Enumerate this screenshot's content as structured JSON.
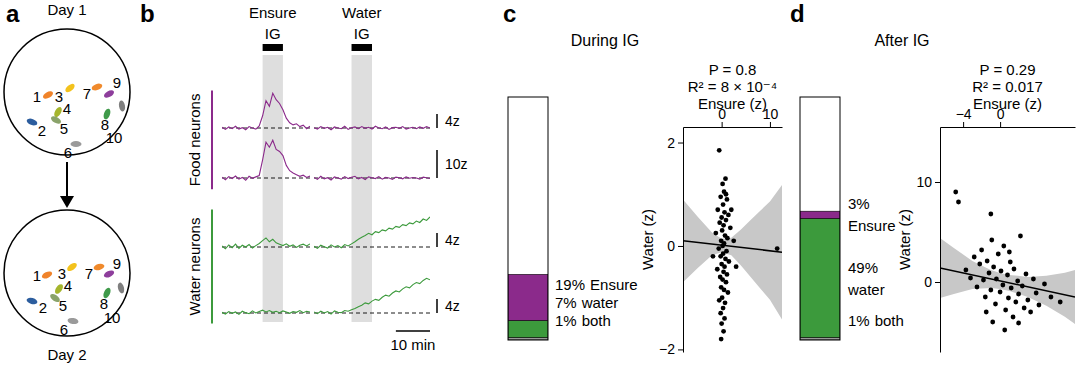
{
  "panel_labels": [
    "a",
    "b",
    "c",
    "d"
  ],
  "neuron_map": {
    "days": [
      "Day 1",
      "Day 2"
    ],
    "neurons": [
      {
        "label": "1",
        "color": "#f0832a"
      },
      {
        "label": "2",
        "color": "#2c5d9e"
      },
      {
        "label": "3",
        "color": "#f3c21c"
      },
      {
        "label": "4",
        "color": "#a5b52c"
      },
      {
        "label": "5",
        "color": "#8aa36a"
      },
      {
        "label": "6",
        "color": "#9a9a9a"
      },
      {
        "label": "7",
        "color": "#f08a2c"
      },
      {
        "label": "8",
        "color": "#3f9a4a"
      },
      {
        "label": "9",
        "color": "#8e3e9c"
      },
      {
        "label": "10",
        "color": "#7f7f7f"
      }
    ]
  },
  "traces": {
    "sessions": [
      {
        "name": "Ensure IG",
        "xlim": [
          0,
          26
        ],
        "ig_window": [
          12,
          18
        ],
        "x": [
          0,
          1,
          2,
          3,
          4,
          5,
          6,
          7,
          8,
          9,
          10,
          11,
          12,
          13,
          14,
          15,
          16,
          17,
          18,
          19,
          20,
          21,
          22,
          23,
          24,
          25,
          26
        ]
      },
      {
        "name": "Water IG",
        "xlim": [
          0,
          34
        ],
        "ig_window": [
          11,
          17
        ],
        "x": [
          0,
          1,
          2,
          3,
          4,
          5,
          6,
          7,
          8,
          9,
          10,
          11,
          12,
          13,
          14,
          15,
          16,
          17,
          18,
          19,
          20,
          21,
          22,
          23,
          24,
          25,
          26,
          27,
          28,
          29,
          30,
          31,
          32,
          33,
          34
        ]
      }
    ],
    "baseline": 0,
    "time_bar": {
      "value": 10,
      "label": "10 min"
    },
    "groups": [
      {
        "name": "Food neurons",
        "color": "#8b2a8b",
        "traces": [
          {
            "ylim": [
              -3,
              13
            ],
            "scale_bar": {
              "value": 4,
              "label": "4z"
            },
            "values": [
              [
                0.2,
                -0.4,
                0.3,
                -0.2,
                0.5,
                -0.3,
                0.1,
                -0.5,
                0.4,
                0.0,
                -0.3,
                0.6,
                3.5,
                7.8,
                6.2,
                9.9,
                8.1,
                7.0,
                5.2,
                2.8,
                1.5,
                0.9,
                1.2,
                0.4,
                0.8,
                -0.2,
                0.5
              ],
              [
                0.1,
                -0.3,
                0.4,
                -0.1,
                0.2,
                -0.5,
                0.3,
                0.0,
                -0.2,
                0.5,
                -0.4,
                0.1,
                0.3,
                -0.2,
                0.4,
                -0.1,
                0.2,
                -0.3,
                0.5,
                0.0,
                -0.2,
                0.3,
                -0.4,
                0.1,
                0.2,
                -0.1,
                0.4,
                -0.3,
                0.0,
                0.2,
                -0.2,
                0.3,
                -0.1,
                0.4,
                0.0
              ]
            ]
          },
          {
            "ylim": [
              -4,
              16
            ],
            "scale_bar": {
              "value": 10,
              "label": "10z"
            },
            "values": [
              [
                0.3,
                -0.6,
                0.5,
                -0.2,
                0.7,
                -0.4,
                0.2,
                -0.8,
                0.6,
                -0.1,
                0.4,
                0.9,
                6.5,
                12.8,
                11.0,
                13.5,
                10.2,
                9.5,
                8.0,
                4.5,
                2.6,
                1.8,
                1.2,
                0.6,
                1.0,
                0.2,
                0.7
              ],
              [
                0.2,
                -0.5,
                0.6,
                -0.3,
                0.1,
                -0.7,
                0.4,
                0.0,
                -0.4,
                0.5,
                -0.2,
                0.3,
                0.6,
                -0.3,
                0.2,
                -0.6,
                0.4,
                0.1,
                -0.2,
                0.5,
                -0.4,
                0.2,
                0.0,
                -0.5,
                0.3,
                0.1,
                -0.3,
                0.4,
                -0.1,
                0.2,
                0.0,
                -0.4,
                0.3,
                0.1,
                -0.2
              ]
            ]
          }
        ]
      },
      {
        "name": "Water neurons",
        "color": "#3c9a3c",
        "traces": [
          {
            "ylim": [
              -3,
              13
            ],
            "scale_bar": {
              "value": 4,
              "label": "4z"
            },
            "values": [
              [
                0.3,
                -0.5,
                0.6,
                -0.2,
                0.8,
                -0.4,
                0.5,
                0.0,
                0.7,
                -0.3,
                0.4,
                1.0,
                1.8,
                2.6,
                1.5,
                2.2,
                1.2,
                0.8,
                0.4,
                0.9,
                0.2,
                0.6,
                -0.1,
                0.5,
                0.8,
                0.3,
                0.9
              ],
              [
                0.2,
                -0.4,
                0.5,
                0.1,
                -0.3,
                0.6,
                0.0,
                0.4,
                -0.2,
                0.7,
                0.3,
                0.9,
                1.5,
                2.2,
                2.8,
                3.3,
                3.9,
                3.5,
                4.4,
                4.1,
                4.9,
                4.6,
                5.4,
                5.1,
                5.9,
                5.6,
                6.4,
                6.1,
                6.9,
                6.6,
                7.4,
                7.0,
                8.0,
                7.6,
                8.6
              ]
            ]
          },
          {
            "ylim": [
              -3,
              13
            ],
            "scale_bar": {
              "value": 4,
              "label": "4z"
            },
            "values": [
              [
                0.2,
                -0.3,
                0.4,
                -0.1,
                0.3,
                -0.4,
                0.5,
                0.1,
                -0.2,
                0.6,
                0.0,
                0.4,
                0.8,
                0.3,
                0.7,
                0.2,
                0.5,
                0.1,
                0.6,
                0.3,
                -0.1,
                0.4,
                0.2,
                0.7,
                0.1,
                0.5,
                0.3
              ],
              [
                0.3,
                -0.2,
                0.5,
                0.0,
                0.4,
                -0.3,
                0.6,
                0.2,
                0.1,
                0.7,
                0.5,
                0.9,
                1.3,
                1.8,
                2.2,
                2.9,
                2.6,
                3.4,
                3.9,
                3.6,
                4.5,
                5.1,
                4.8,
                5.7,
                6.3,
                6.0,
                6.9,
                7.5,
                7.2,
                8.1,
                8.7,
                8.4,
                9.3,
                9.9,
                9.5
              ]
            ]
          }
        ]
      }
    ]
  },
  "chart_data": [
    {
      "type": "bar",
      "title": "During IG",
      "stacked": true,
      "data_labels": true,
      "tick_labels": false,
      "categories": [
        null
      ],
      "ylim": [
        0,
        100
      ],
      "yticks": [],
      "series": [
        {
          "name": "both",
          "color": "#9a9a9a",
          "values": [
            1
          ],
          "value_labels": [
            "1%"
          ]
        },
        {
          "name": "water",
          "color": "#3c9a3c",
          "values": [
            7
          ],
          "value_labels": [
            "7%"
          ]
        },
        {
          "name": "Ensure",
          "color": "#8b2a8b",
          "values": [
            19
          ],
          "value_labels": [
            "19%"
          ]
        }
      ]
    },
    {
      "type": "scatter",
      "x_label": "Ensure (z)",
      "y_label": "Water (z)",
      "annotations": [
        "P = 0.8",
        "R² = 8 × 10⁻⁴"
      ],
      "color": "#000000",
      "marker": "circle",
      "xlim": [
        -8,
        12.5
      ],
      "xticks": [
        0,
        10
      ],
      "ylim": [
        -2.05,
        2.3
      ],
      "yticks": [
        {
          "value": -2,
          "label": "−2"
        },
        0,
        2
      ],
      "x": [
        -0.5,
        0.2,
        0.8,
        0.5,
        -0.2,
        1.1,
        0.3,
        -0.8,
        0.6,
        1.4,
        0.0,
        0.9,
        -0.4,
        0.4,
        1.8,
        0.1,
        -1.2,
        0.7,
        1.2,
        -0.1,
        0.5,
        0.2,
        -0.6,
        1.0,
        0.3,
        -0.2,
        0.8,
        1.5,
        0.0,
        0.6,
        -0.9,
        0.4,
        1.1,
        -0.3,
        0.2,
        0.9,
        -0.1,
        0.5,
        1.3,
        0.1,
        -0.5,
        0.7,
        0.3,
        -0.2,
        0.6,
        0.0,
        0.4,
        -0.1,
        2.5,
        3.0,
        11.5,
        -1.8,
        2.0,
        0.9
      ],
      "values": [
        1.85,
        1.2,
        1.3,
        1.05,
        0.95,
        0.9,
        0.8,
        0.7,
        0.65,
        0.6,
        0.55,
        0.5,
        0.45,
        0.4,
        0.35,
        0.3,
        0.25,
        0.2,
        0.15,
        0.1,
        0.05,
        0.0,
        -0.05,
        -0.1,
        -0.15,
        -0.2,
        -0.25,
        -0.3,
        -0.35,
        -0.4,
        -0.45,
        -0.5,
        -0.55,
        -0.6,
        -0.65,
        -0.7,
        -0.8,
        -0.85,
        -0.9,
        -1.0,
        -1.05,
        -1.1,
        -1.2,
        -1.3,
        -1.4,
        -1.5,
        -1.65,
        -1.8,
        0.1,
        -0.4,
        -0.05,
        -0.2,
        0.7,
        1.0
      ],
      "fit": {
        "x": [
          -8,
          12.5
        ],
        "y": [
          0.1,
          -0.12
        ]
      },
      "fit_band": {
        "x": [
          -8,
          -5,
          -2,
          0,
          2,
          4,
          6,
          8,
          10,
          12.5
        ],
        "lower": [
          -0.7,
          -0.43,
          -0.18,
          -0.12,
          -0.18,
          -0.38,
          -0.6,
          -0.82,
          -1.04,
          -1.42
        ],
        "upper": [
          0.9,
          0.57,
          0.26,
          0.14,
          0.16,
          0.32,
          0.5,
          0.68,
          0.86,
          1.18
        ]
      }
    },
    {
      "type": "bar",
      "title": "After IG",
      "stacked": true,
      "data_labels": true,
      "tick_labels": false,
      "categories": [
        null
      ],
      "ylim": [
        0,
        100
      ],
      "yticks": [],
      "series": [
        {
          "name": "both",
          "color": "#9a9a9a",
          "values": [
            1
          ],
          "value_labels": [
            "1%"
          ]
        },
        {
          "name": "water",
          "color": "#3c9a3c",
          "values": [
            49
          ],
          "value_labels": [
            "49%"
          ]
        },
        {
          "name": "Ensure",
          "color": "#8b2a8b",
          "values": [
            3
          ],
          "value_labels": [
            "3%"
          ]
        }
      ]
    },
    {
      "type": "scatter",
      "x_label": "Ensure (z)",
      "y_label": "Water (z)",
      "annotations": [
        "P = 0.29",
        "R² = 0.017"
      ],
      "color": "#000000",
      "marker": "circle",
      "xlim": [
        -6.5,
        8.1
      ],
      "xticks": [
        {
          "value": -4,
          "label": "−4"
        },
        0
      ],
      "ylim": [
        -7,
        15.5
      ],
      "yticks": [
        0,
        10
      ],
      "x": [
        -3.7,
        -3.2,
        -2.8,
        -2.5,
        -2.2,
        -2.0,
        -1.8,
        -1.6,
        -1.4,
        -1.2,
        -1.0,
        -0.9,
        -0.7,
        -0.5,
        -0.4,
        -0.2,
        0.0,
        0.1,
        0.3,
        0.4,
        0.6,
        0.8,
        0.9,
        1.1,
        1.2,
        1.4,
        1.5,
        1.7,
        1.9,
        2.0,
        2.2,
        2.4,
        2.6,
        2.8,
        3.0,
        3.3,
        3.6,
        3.9,
        4.2,
        4.8,
        5.5,
        -4.8,
        -4.5,
        -1.0,
        -0.8,
        0.5,
        2.0,
        6.5,
        1.0,
        -1.5
      ],
      "values": [
        1.2,
        0.4,
        2.5,
        -0.5,
        1.8,
        3.2,
        0.2,
        -1.5,
        2.1,
        0.9,
        -0.8,
        4.2,
        1.5,
        -2.2,
        0.3,
        2.8,
        -1.0,
        1.1,
        -0.3,
        3.6,
        -2.8,
        0.7,
        -1.6,
        2.0,
        -0.6,
        -3.5,
        1.3,
        -2.0,
        0.1,
        -1.2,
        4.6,
        -0.4,
        -2.6,
        0.8,
        -1.8,
        -3.0,
        0.3,
        -1.1,
        -2.3,
        -0.2,
        -1.5,
        9.0,
        8.0,
        6.8,
        -4.0,
        -4.8,
        -4.1,
        -2.0,
        3.0,
        -3.0
      ],
      "fit": {
        "x": [
          -6.5,
          8.1
        ],
        "y": [
          1.4,
          -1.5
        ]
      },
      "fit_band": {
        "x": [
          -6.5,
          -5,
          -3,
          -1,
          0,
          1,
          3,
          5,
          7,
          8.1
        ],
        "lower": [
          -1.6,
          -1.2,
          -0.69,
          -0.59,
          -0.69,
          -0.89,
          -1.49,
          -2.38,
          -3.48,
          -4.2
        ],
        "upper": [
          4.4,
          3.4,
          2.11,
          1.21,
          0.91,
          0.71,
          0.51,
          0.62,
          0.92,
          1.2
        ]
      }
    }
  ]
}
